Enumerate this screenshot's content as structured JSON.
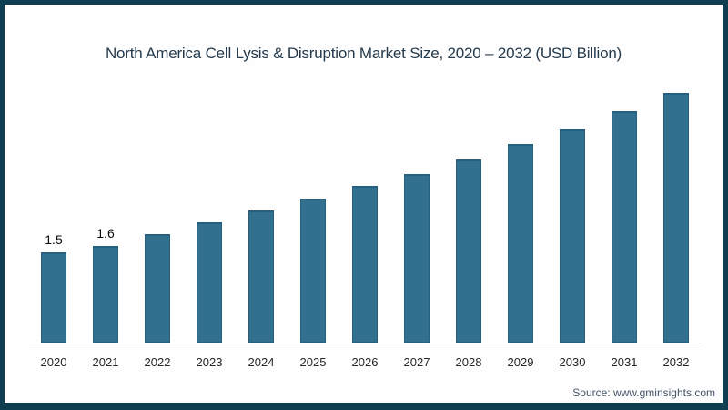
{
  "frame": {
    "border_color": "#0e3e50",
    "background": "#fefefe"
  },
  "chart_data": {
    "type": "bar",
    "title": "North America Cell Lysis & Disruption Market Size, 2020 – 2032 (USD Billion)",
    "categories": [
      "2020",
      "2021",
      "2022",
      "2023",
      "2024",
      "2025",
      "2026",
      "2027",
      "2028",
      "2029",
      "2030",
      "2031",
      "2032"
    ],
    "values": [
      1.5,
      1.6,
      1.8,
      2.0,
      2.2,
      2.4,
      2.6,
      2.8,
      3.05,
      3.3,
      3.55,
      3.85,
      4.15
    ],
    "data_labels": [
      "1.5",
      "1.6",
      "",
      "",
      "",
      "",
      "",
      "",
      "",
      "",
      "",
      "",
      ""
    ],
    "unit": "USD Billion",
    "xlabel": "",
    "ylabel": "",
    "ylim": [
      0,
      4.5
    ],
    "bar_color": "#31708f",
    "bar_edge_color": "#26607e",
    "grid": false,
    "legend": "none",
    "y_axis_visible": false
  },
  "footer": {
    "source": "Source: www.gminsights.com"
  }
}
